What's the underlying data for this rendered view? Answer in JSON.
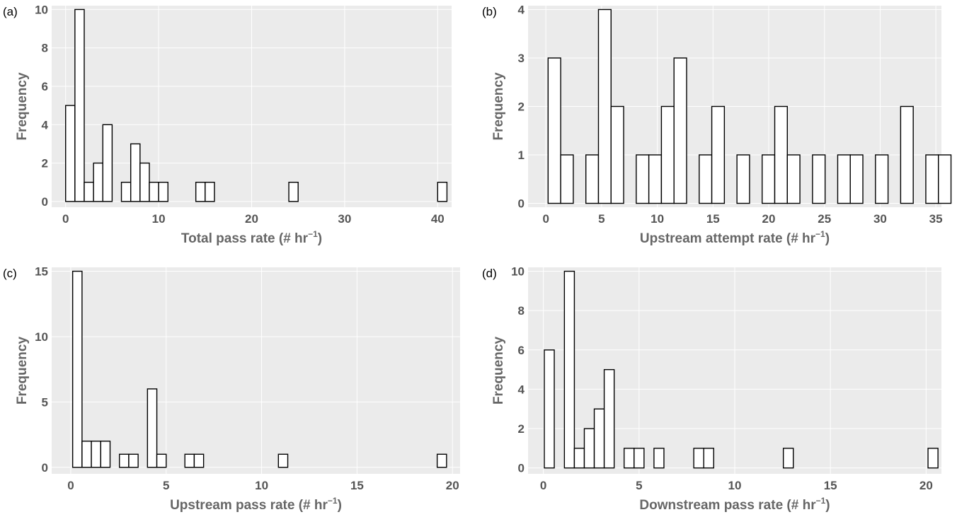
{
  "colors": {
    "plot_bg": "#ebebeb",
    "grid": "#ffffff",
    "bar_fill": "#ffffff",
    "bar_edge": "#000000",
    "text": "#666666"
  },
  "chart_data": [
    {
      "type": "bar",
      "panel": "(a)",
      "xlabel": "Total pass rate (# hr",
      "xlabel_sup": "−1",
      "xlabel_end": ")",
      "ylabel": "Frequency",
      "xlim": [
        -1.5,
        41.5
      ],
      "ylim": [
        -0.3,
        10.2
      ],
      "xticks": [
        0,
        10,
        20,
        30,
        40
      ],
      "yticks": [
        0,
        2,
        4,
        6,
        8,
        10
      ],
      "bin_width": 1,
      "bins": [
        [
          0,
          5
        ],
        [
          1,
          10
        ],
        [
          2,
          1
        ],
        [
          3,
          2
        ],
        [
          4,
          4
        ],
        [
          6,
          1
        ],
        [
          7,
          3
        ],
        [
          8,
          2
        ],
        [
          9,
          1
        ],
        [
          10,
          1
        ],
        [
          14,
          1
        ],
        [
          15,
          1
        ],
        [
          24,
          1
        ],
        [
          40,
          1
        ]
      ]
    },
    {
      "type": "bar",
      "panel": "(b)",
      "xlabel": "Upstream attempt rate (# hr",
      "xlabel_sup": "−1",
      "xlabel_end": ")",
      "ylabel": "Frequency",
      "xlim": [
        -1.6,
        35.5
      ],
      "ylim": [
        -0.08,
        4.08
      ],
      "xticks": [
        0,
        5,
        10,
        15,
        20,
        25,
        30,
        35
      ],
      "yticks": [
        0,
        1,
        2,
        3,
        4
      ],
      "bin_width": 1.13,
      "bins": [
        [
          0.2,
          3
        ],
        [
          1.33,
          1
        ],
        [
          3.59,
          1
        ],
        [
          4.72,
          4
        ],
        [
          5.85,
          2
        ],
        [
          8.11,
          1
        ],
        [
          9.24,
          1
        ],
        [
          10.37,
          2
        ],
        [
          11.5,
          3
        ],
        [
          13.76,
          1
        ],
        [
          14.89,
          2
        ],
        [
          17.15,
          1
        ],
        [
          19.41,
          1
        ],
        [
          20.54,
          2
        ],
        [
          21.67,
          1
        ],
        [
          23.93,
          1
        ],
        [
          26.19,
          1
        ],
        [
          27.32,
          1
        ],
        [
          29.58,
          1
        ],
        [
          31.84,
          2
        ],
        [
          34.1,
          1
        ],
        [
          35.23,
          1
        ]
      ]
    },
    {
      "type": "bar",
      "panel": "(c)",
      "xlabel": "Upstream pass rate (# hr",
      "xlabel_sup": "−1",
      "xlabel_end": ")",
      "ylabel": "Frequency",
      "xlim": [
        -1.0,
        20.4
      ],
      "ylim": [
        -0.5,
        15.3
      ],
      "xticks": [
        0,
        5,
        10,
        15,
        20
      ],
      "yticks": [
        0,
        5,
        10,
        15
      ],
      "bin_width": 0.49,
      "bins": [
        [
          0.1,
          15
        ],
        [
          0.59,
          2
        ],
        [
          1.08,
          2
        ],
        [
          1.57,
          2
        ],
        [
          2.55,
          1
        ],
        [
          3.04,
          1
        ],
        [
          4.02,
          6
        ],
        [
          4.51,
          1
        ],
        [
          5.98,
          1
        ],
        [
          6.47,
          1
        ],
        [
          10.88,
          1
        ],
        [
          19.2,
          1
        ]
      ]
    },
    {
      "type": "bar",
      "panel": "(d)",
      "xlabel": "Downstream pass rate (# hr",
      "xlabel_sup": "−1",
      "xlabel_end": ")",
      "ylabel": "Frequency",
      "xlim": [
        -0.8,
        20.8
      ],
      "ylim": [
        -0.3,
        10.2
      ],
      "xticks": [
        0,
        5,
        10,
        15,
        20
      ],
      "yticks": [
        0,
        2,
        4,
        6,
        8,
        10
      ],
      "bin_width": 0.52,
      "bins": [
        [
          0.05,
          6
        ],
        [
          1.1,
          10
        ],
        [
          1.62,
          1
        ],
        [
          2.14,
          2
        ],
        [
          2.66,
          3
        ],
        [
          3.18,
          5
        ],
        [
          4.22,
          1
        ],
        [
          4.74,
          1
        ],
        [
          5.78,
          1
        ],
        [
          7.86,
          1
        ],
        [
          8.38,
          1
        ],
        [
          12.54,
          1
        ],
        [
          20.1,
          1
        ]
      ]
    }
  ]
}
